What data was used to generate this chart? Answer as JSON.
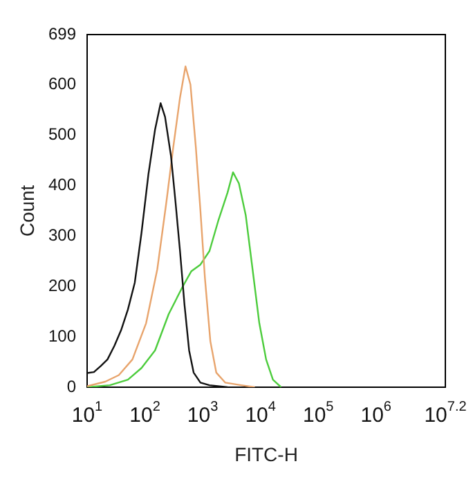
{
  "chart_data": {
    "type": "line",
    "xlabel": "FITC-H",
    "ylabel": "Count",
    "xlim": [
      10,
      15848932
    ],
    "xticks": [
      {
        "value": 10,
        "label": "10$^{1}$"
      },
      {
        "value": 100,
        "label": "10$^{2}$"
      },
      {
        "value": 1000,
        "label": "10$^{3}$"
      },
      {
        "value": 10000,
        "label": "10$^{4}$"
      },
      {
        "value": 100000,
        "label": "10$^{5}$"
      },
      {
        "value": 1000000,
        "label": "10$^{6}$"
      },
      {
        "value": 15848932,
        "label": "10$^{7.2}$"
      }
    ],
    "ylim": [
      0,
      699
    ],
    "yticks": [
      0,
      100,
      200,
      300,
      400,
      500,
      600,
      699
    ],
    "log": "x",
    "grid": false,
    "legend": false,
    "marker": "none",
    "line_style": "solid",
    "series": [
      {
        "color": "#111111",
        "x": [
          10,
          13.1,
          17.2,
          22.5,
          29.6,
          38.7,
          50.8,
          66.7,
          87.3,
          115,
          150,
          187,
          223,
          283,
          338,
          405,
          485,
          582,
          697,
          914,
          1312,
          2698
        ],
        "values": [
          28,
          30,
          42,
          55,
          82,
          113,
          154,
          207,
          306,
          422,
          511,
          563,
          536,
          458,
          368,
          270,
          163,
          73,
          29,
          9,
          4,
          0
        ]
      },
      {
        "color": "#e8a46c",
        "x": [
          10,
          20.6,
          35.4,
          60.8,
          105,
          164,
          236,
          309,
          405,
          504,
          614,
          762,
          914,
          1094,
          1358,
          1718,
          2466,
          4645,
          7980
        ],
        "values": [
          2,
          11,
          24,
          55,
          127,
          234,
          368,
          475,
          574,
          636,
          600,
          475,
          350,
          216,
          91,
          29,
          9,
          4,
          0
        ]
      },
      {
        "color": "#4ccc3c",
        "x": [
          10,
          24.7,
          50.8,
          87.3,
          150,
          258,
          444,
          637,
          914,
          1312,
          1884,
          2698,
          3350,
          4236,
          5559,
          7295,
          9550,
          12531,
          16444,
          22751
        ],
        "values": [
          0,
          4,
          15,
          38,
          73,
          145,
          198,
          230,
          243,
          270,
          332,
          386,
          426,
          404,
          341,
          234,
          127,
          55,
          15,
          0
        ]
      }
    ]
  }
}
